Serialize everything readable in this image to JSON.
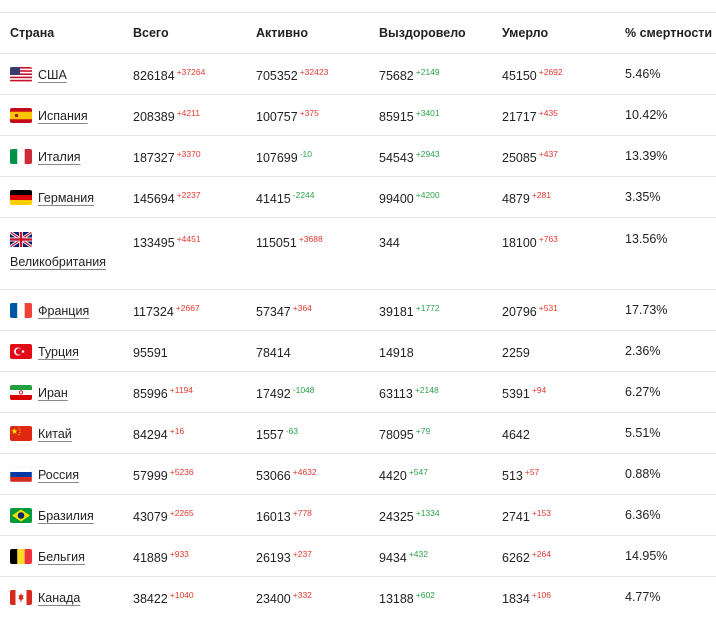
{
  "headers": [
    "Страна",
    "Всего",
    "Активно",
    "Выздоровело",
    "Умерло",
    "% смертности"
  ],
  "rows": [
    {
      "flag": "flag-usa-icon",
      "country": "США",
      "total": "826184",
      "total_d": "+37264",
      "active": "705352",
      "active_d": "+32423",
      "active_dc": "up",
      "recovered": "75682",
      "recovered_d": "+2149",
      "deaths": "45150",
      "deaths_d": "+2692",
      "rate": "5.46%"
    },
    {
      "flag": "flag-spain-icon",
      "country": "Испания",
      "total": "208389",
      "total_d": "+4211",
      "active": "100757",
      "active_d": "+375",
      "active_dc": "up",
      "recovered": "85915",
      "recovered_d": "+3401",
      "deaths": "21717",
      "deaths_d": "+435",
      "rate": "10.42%"
    },
    {
      "flag": "flag-italy-icon",
      "country": "Италия",
      "total": "187327",
      "total_d": "+3370",
      "active": "107699",
      "active_d": "-10",
      "active_dc": "green",
      "recovered": "54543",
      "recovered_d": "+2943",
      "deaths": "25085",
      "deaths_d": "+437",
      "rate": "13.39%"
    },
    {
      "flag": "flag-germany-icon",
      "country": "Германия",
      "total": "145694",
      "total_d": "+2237",
      "active": "41415",
      "active_d": "-2244",
      "active_dc": "green",
      "recovered": "99400",
      "recovered_d": "+4200",
      "deaths": "4879",
      "deaths_d": "+281",
      "rate": "3.35%"
    },
    {
      "flag": "flag-uk-icon",
      "country": "Великобритания",
      "total": "133495",
      "total_d": "+4451",
      "active": "115051",
      "active_d": "+3688",
      "active_dc": "up",
      "recovered": "344",
      "recovered_d": "",
      "deaths": "18100",
      "deaths_d": "+763",
      "rate": "13.56%"
    },
    {
      "flag": "flag-france-icon",
      "country": "Франция",
      "total": "117324",
      "total_d": "+2667",
      "active": "57347",
      "active_d": "+364",
      "active_dc": "up",
      "recovered": "39181",
      "recovered_d": "+1772",
      "deaths": "20796",
      "deaths_d": "+531",
      "rate": "17.73%"
    },
    {
      "flag": "flag-turkey-icon",
      "country": "Турция",
      "total": "95591",
      "total_d": "",
      "active": "78414",
      "active_d": "",
      "active_dc": "up",
      "recovered": "14918",
      "recovered_d": "",
      "deaths": "2259",
      "deaths_d": "",
      "rate": "2.36%"
    },
    {
      "flag": "flag-iran-icon",
      "country": "Иран",
      "total": "85996",
      "total_d": "+1194",
      "active": "17492",
      "active_d": "-1048",
      "active_dc": "green",
      "recovered": "63113",
      "recovered_d": "+2148",
      "deaths": "5391",
      "deaths_d": "+94",
      "rate": "6.27%"
    },
    {
      "flag": "flag-china-icon",
      "country": "Китай",
      "total": "84294",
      "total_d": "+16",
      "active": "1557",
      "active_d": "-63",
      "active_dc": "green",
      "recovered": "78095",
      "recovered_d": "+79",
      "deaths": "4642",
      "deaths_d": "",
      "rate": "5.51%"
    },
    {
      "flag": "flag-russia-icon",
      "country": "Россия",
      "total": "57999",
      "total_d": "+5236",
      "active": "53066",
      "active_d": "+4632",
      "active_dc": "up",
      "recovered": "4420",
      "recovered_d": "+547",
      "deaths": "513",
      "deaths_d": "+57",
      "rate": "0.88%"
    },
    {
      "flag": "flag-brazil-icon",
      "country": "Бразилия",
      "total": "43079",
      "total_d": "+2265",
      "active": "16013",
      "active_d": "+778",
      "active_dc": "up",
      "recovered": "24325",
      "recovered_d": "+1334",
      "deaths": "2741",
      "deaths_d": "+153",
      "rate": "6.36%"
    },
    {
      "flag": "flag-belgium-icon",
      "country": "Бельгия",
      "total": "41889",
      "total_d": "+933",
      "active": "26193",
      "active_d": "+237",
      "active_dc": "up",
      "recovered": "9434",
      "recovered_d": "+432",
      "deaths": "6262",
      "deaths_d": "+264",
      "rate": "14.95%"
    },
    {
      "flag": "flag-canada-icon",
      "country": "Канада",
      "total": "38422",
      "total_d": "+1040",
      "active": "23400",
      "active_d": "+332",
      "active_dc": "up",
      "recovered": "13188",
      "recovered_d": "+602",
      "deaths": "1834",
      "deaths_d": "+106",
      "rate": "4.77%"
    }
  ]
}
